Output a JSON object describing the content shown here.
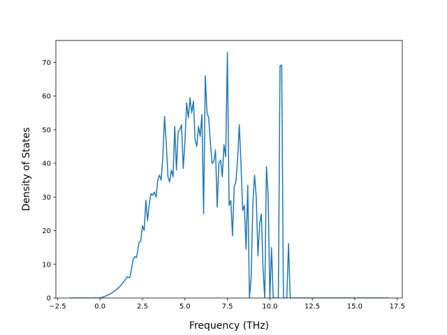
{
  "chart_data": {
    "type": "line",
    "title": "",
    "xlabel": "Frequency (THz)",
    "ylabel": "Density of States",
    "xlim": [
      -2.6,
      17.8
    ],
    "ylim": [
      0,
      76.5
    ],
    "xticks": [
      -2.5,
      0.0,
      2.5,
      5.0,
      7.5,
      10.0,
      12.5,
      15.0,
      17.5
    ],
    "xtick_labels": [
      "−2.5",
      "0.0",
      "2.5",
      "5.0",
      "7.5",
      "10.0",
      "12.5",
      "15.0",
      "17.5"
    ],
    "yticks": [
      0,
      10,
      20,
      30,
      40,
      50,
      60,
      70
    ],
    "ytick_labels": [
      "0",
      "10",
      "20",
      "30",
      "40",
      "50",
      "60",
      "70"
    ],
    "grid": false,
    "series": [
      {
        "color": "#1f77b4",
        "x": [
          -1.8,
          0.0,
          0.3,
          0.6,
          0.9,
          1.2,
          1.5,
          1.6,
          1.75,
          1.85,
          1.95,
          2.05,
          2.15,
          2.3,
          2.4,
          2.5,
          2.6,
          2.7,
          2.8,
          2.9,
          3.0,
          3.1,
          3.2,
          3.3,
          3.4,
          3.5,
          3.6,
          3.7,
          3.8,
          3.9,
          4.0,
          4.1,
          4.2,
          4.3,
          4.4,
          4.5,
          4.6,
          4.7,
          4.8,
          4.9,
          5.0,
          5.1,
          5.2,
          5.3,
          5.4,
          5.5,
          5.6,
          5.7,
          5.8,
          5.9,
          6.0,
          6.1,
          6.2,
          6.3,
          6.4,
          6.5,
          6.6,
          6.7,
          6.8,
          6.9,
          7.0,
          7.1,
          7.2,
          7.3,
          7.4,
          7.5,
          7.6,
          7.7,
          7.8,
          7.9,
          8.0,
          8.1,
          8.2,
          8.3,
          8.4,
          8.5,
          8.6,
          8.7,
          8.8,
          8.9,
          9.0,
          9.1,
          9.2,
          9.3,
          9.4,
          9.5,
          9.6,
          9.7,
          9.8,
          9.9,
          10.0,
          10.1,
          10.2,
          10.3,
          10.4,
          10.5,
          10.6,
          10.7,
          10.8,
          10.9,
          11.0,
          11.1,
          11.2,
          11.3,
          17.0
        ],
        "y": [
          0,
          0,
          0.5,
          1.2,
          2.2,
          3.6,
          5.5,
          6.3,
          6.0,
          8.5,
          11.5,
          12.3,
          12.0,
          16.5,
          17.0,
          21.5,
          20.0,
          29.0,
          23.0,
          28.0,
          31.0,
          30.5,
          31.5,
          30.0,
          35.0,
          36.5,
          35.0,
          42.0,
          54.0,
          46.0,
          36.0,
          34.5,
          38.0,
          36.0,
          51.0,
          38.0,
          49.5,
          50.0,
          51.5,
          38.5,
          46.5,
          58.0,
          53.5,
          59.5,
          55.0,
          58.5,
          47.0,
          45.0,
          51.0,
          48.0,
          54.5,
          25.0,
          66.0,
          55.0,
          53.5,
          46.0,
          40.0,
          40.5,
          44.0,
          27.0,
          40.0,
          41.0,
          36.0,
          45.5,
          42.0,
          73.0,
          27.5,
          29.0,
          18.5,
          33.0,
          34.5,
          41.0,
          51.5,
          40.0,
          26.0,
          27.5,
          14.5,
          33.5,
          0,
          6.0,
          28.0,
          36.5,
          30.0,
          12.5,
          22.0,
          25.0,
          8.5,
          0,
          39.0,
          30.5,
          0,
          15.0,
          0,
          0,
          0,
          0,
          69.0,
          69.2,
          0,
          0,
          0,
          16.2,
          0,
          0,
          0
        ]
      }
    ]
  }
}
